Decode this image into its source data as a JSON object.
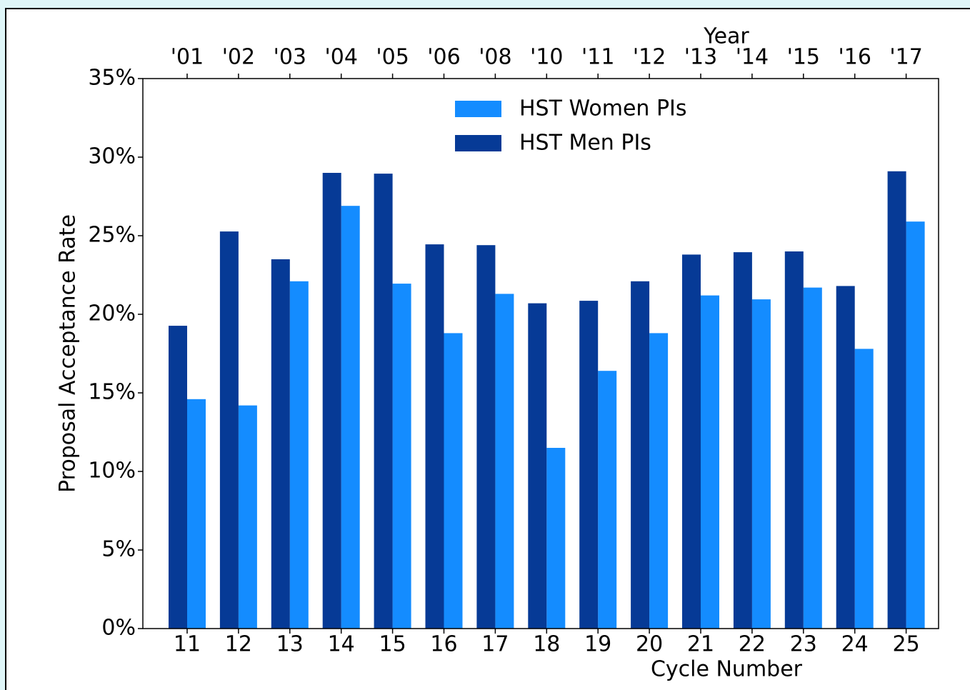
{
  "chart_data": {
    "type": "bar",
    "xlabel": "Cycle Number",
    "ylabel": "Proposal Acceptance Rate",
    "x2label": "Year",
    "categories": [
      "11",
      "12",
      "13",
      "14",
      "15",
      "16",
      "17",
      "18",
      "19",
      "20",
      "21",
      "22",
      "23",
      "24",
      "25"
    ],
    "year_labels": [
      "'01",
      "'02",
      "'03",
      "'04",
      "'05",
      "'06",
      "'08",
      "'10",
      "'11",
      "'12",
      "'13",
      "'14",
      "'15",
      "'16",
      "'17"
    ],
    "series": [
      {
        "name": "HST Women PIs",
        "color": "#148cff",
        "values": [
          14.6,
          14.2,
          22.1,
          26.9,
          21.95,
          18.8,
          21.3,
          11.5,
          16.4,
          18.8,
          21.2,
          20.95,
          21.7,
          17.8,
          25.9
        ]
      },
      {
        "name": "HST Men PIs",
        "color": "#063a96",
        "values": [
          19.27,
          25.27,
          23.5,
          29.0,
          28.95,
          24.45,
          24.4,
          20.7,
          20.86,
          22.1,
          23.8,
          23.95,
          24.0,
          21.8,
          29.1
        ]
      }
    ],
    "ylim": [
      0,
      35
    ],
    "yticks": [
      {
        "value": 0,
        "label": "0%"
      },
      {
        "value": 5,
        "label": "5%"
      },
      {
        "value": 10,
        "label": "10%"
      },
      {
        "value": 15,
        "label": "15%"
      },
      {
        "value": 20,
        "label": "20%"
      },
      {
        "value": 25,
        "label": "25%"
      },
      {
        "value": 30,
        "label": "30%"
      },
      {
        "value": 35,
        "label": "35%"
      }
    ],
    "grid": false,
    "legend": "upper center"
  }
}
